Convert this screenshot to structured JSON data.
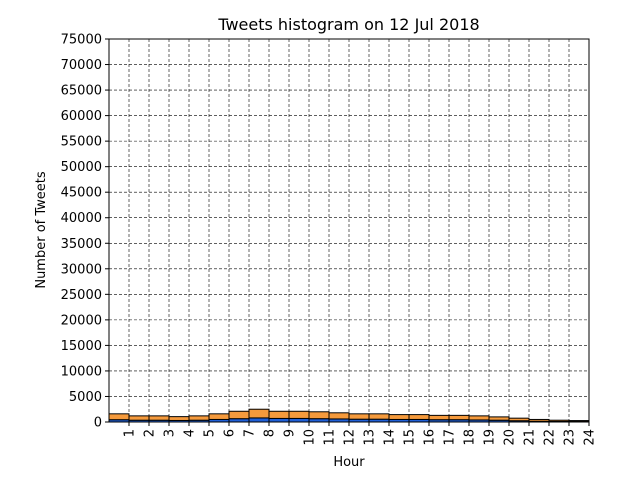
{
  "chart_data": {
    "type": "bar",
    "stacked": true,
    "title": "Tweets histogram on 12 Jul 2018",
    "xlabel": "Hour",
    "ylabel": "Number of Tweets",
    "xlim": [
      0,
      24
    ],
    "ylim": [
      0,
      75000
    ],
    "yticks": [
      0,
      5000,
      10000,
      15000,
      20000,
      25000,
      30000,
      35000,
      40000,
      45000,
      50000,
      55000,
      60000,
      65000,
      70000,
      75000
    ],
    "xticks": [
      "1",
      "2",
      "3",
      "4",
      "5",
      "6",
      "7",
      "8",
      "9",
      "10",
      "11",
      "12",
      "13",
      "14",
      "15",
      "16",
      "17",
      "18",
      "19",
      "20",
      "21",
      "22",
      "23",
      "24"
    ],
    "grid": true,
    "legend": "none",
    "bins": [
      [
        0,
        1
      ],
      [
        1,
        2
      ],
      [
        2,
        3
      ],
      [
        3,
        4
      ],
      [
        4,
        5
      ],
      [
        5,
        6
      ],
      [
        6,
        7
      ],
      [
        7,
        8
      ],
      [
        8,
        9
      ],
      [
        9,
        10
      ],
      [
        10,
        11
      ],
      [
        11,
        12
      ],
      [
        12,
        13
      ],
      [
        13,
        14
      ],
      [
        14,
        15
      ],
      [
        15,
        16
      ],
      [
        16,
        17
      ],
      [
        17,
        18
      ],
      [
        18,
        19
      ],
      [
        19,
        20
      ],
      [
        20,
        21
      ],
      [
        21,
        22
      ],
      [
        22,
        23
      ],
      [
        23,
        24
      ]
    ],
    "series": [
      {
        "color": "#1f5fd6",
        "values": [
          450,
          350,
          350,
          300,
          350,
          500,
          650,
          800,
          700,
          700,
          650,
          600,
          550,
          550,
          500,
          500,
          450,
          450,
          400,
          350,
          250,
          150,
          100,
          80
        ]
      },
      {
        "color": "#f59a3c",
        "values": [
          1150,
          850,
          850,
          750,
          850,
          1100,
          1450,
          1700,
          1400,
          1400,
          1350,
          1200,
          1050,
          1050,
          950,
          950,
          850,
          850,
          800,
          650,
          500,
          350,
          250,
          200
        ]
      }
    ]
  }
}
